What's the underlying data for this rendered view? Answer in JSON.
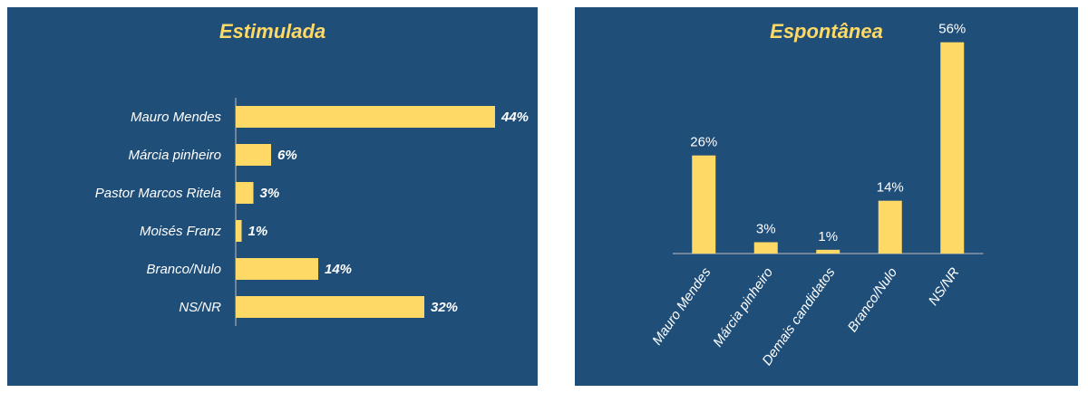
{
  "colors": {
    "panel_bg": "#1f4e79",
    "bar": "#ffd966",
    "title": "#ffd966",
    "text": "#ffffff",
    "axis": "#bfbfbf"
  },
  "chart_data": [
    {
      "type": "bar",
      "orientation": "horizontal",
      "title": "Estimulada",
      "categories": [
        "Mauro Mendes",
        "Márcia pinheiro",
        "Pastor Marcos Ritela",
        "Moisés Franz",
        "Branco/Nulo",
        "NS/NR"
      ],
      "values": [
        44,
        6,
        3,
        1,
        14,
        32
      ],
      "value_labels": [
        "44%",
        "6%",
        "3%",
        "1%",
        "14%",
        "32%"
      ],
      "xlim": [
        0,
        60
      ],
      "grid": false,
      "legend": "none"
    },
    {
      "type": "bar",
      "orientation": "vertical",
      "title": "Espontânea",
      "categories": [
        "Mauro Mendes",
        "Márcia pinheiro",
        "Demais candidatos",
        "Branco/Nulo",
        "NS/NR"
      ],
      "values": [
        26,
        3,
        1,
        14,
        56
      ],
      "value_labels": [
        "26%",
        "3%",
        "1%",
        "14%",
        "56%"
      ],
      "ylim": [
        0,
        60
      ],
      "grid": false,
      "legend": "none"
    }
  ]
}
